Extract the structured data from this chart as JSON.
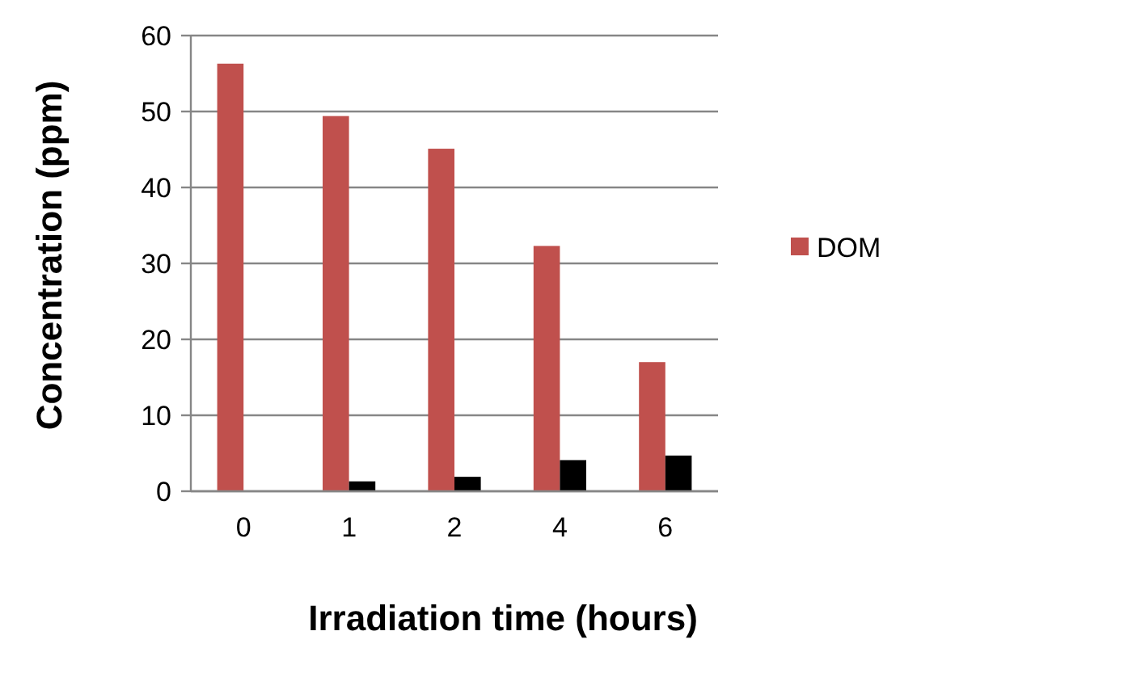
{
  "chart_data": {
    "type": "bar",
    "xlabel": "Irradiation time (hours)",
    "ylabel": "Concentration (ppm)",
    "categories": [
      "0",
      "1",
      "2",
      "4",
      "6"
    ],
    "series": [
      {
        "name": "DOM",
        "color": "#c0504d",
        "values": [
          56.3,
          49.4,
          45.1,
          32.3,
          17.0
        ]
      },
      {
        "color": "#000000",
        "values": [
          0,
          1.3,
          1.9,
          4.1,
          4.7
        ]
      }
    ],
    "ylim": [
      0,
      60
    ],
    "yticks": [
      0,
      10,
      20,
      30,
      40,
      50,
      60
    ],
    "grid": "y",
    "legend": "right"
  }
}
